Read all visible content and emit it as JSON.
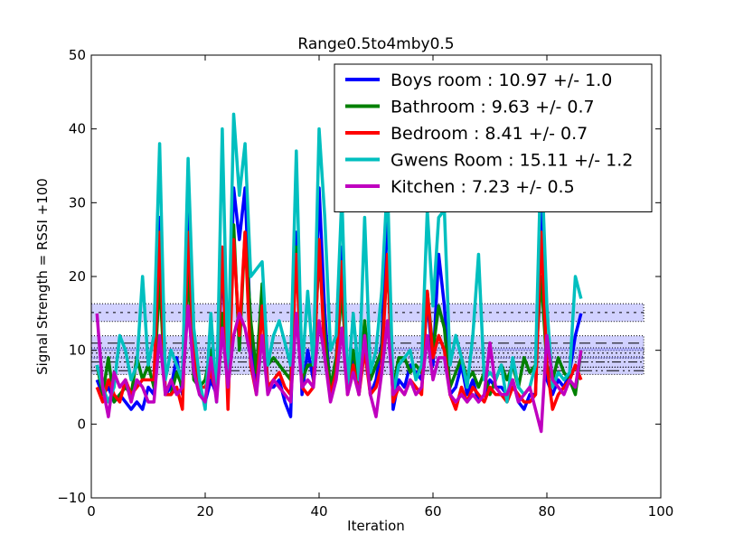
{
  "chart_data": {
    "type": "line",
    "title": "Range0.5to4mby0.5",
    "xlabel": "Iteration",
    "ylabel": "Signal Strength  = RSSI +100",
    "xlim": [
      0,
      100
    ],
    "ylim": [
      -10,
      50
    ],
    "x_ticks": [
      0,
      20,
      40,
      60,
      80,
      100
    ],
    "y_ticks": [
      -10,
      0,
      10,
      20,
      30,
      40,
      50
    ],
    "x_tick_labels": [
      "0",
      "20",
      "40",
      "60",
      "80",
      "100"
    ],
    "y_tick_labels": [
      "−10",
      "0",
      "10",
      "20",
      "30",
      "40",
      "50"
    ],
    "grid": false,
    "legend_position": "upper right",
    "series": [
      {
        "name": "Boys room : 10.97 +/- 1.0",
        "color": "#0000ff",
        "mean": 10.97,
        "spread": 1.0,
        "values": [
          6,
          4,
          5,
          3,
          4,
          3,
          2,
          3,
          2,
          5,
          4,
          28,
          4,
          5,
          9,
          4,
          29,
          11,
          4,
          3,
          6,
          4,
          22,
          5,
          32,
          25,
          32,
          12,
          5,
          18,
          5,
          5,
          6,
          3,
          1,
          26,
          4,
          10,
          6,
          32,
          15,
          4,
          8,
          24,
          5,
          9,
          4,
          12,
          4,
          6,
          11,
          30,
          2,
          6,
          5,
          8,
          7,
          6,
          17,
          8,
          23,
          16,
          4,
          5,
          8,
          4,
          6,
          3,
          4,
          6,
          5,
          5,
          4,
          6,
          3,
          2,
          4,
          4,
          30,
          6,
          4,
          6,
          5,
          7,
          12,
          15
        ]
      },
      {
        "name": "Bathroom : 9.63 +/- 0.7",
        "color": "#008000",
        "mean": 9.63,
        "spread": 0.7,
        "values": [
          8,
          4,
          9,
          3,
          4,
          5,
          4,
          9,
          6,
          8,
          5,
          20,
          4,
          4,
          7,
          5,
          21,
          6,
          5,
          6,
          10,
          6,
          15,
          7,
          27,
          10,
          26,
          14,
          7,
          19,
          8,
          9,
          8,
          7,
          6,
          24,
          6,
          8,
          8,
          23,
          12,
          5,
          9,
          18,
          6,
          10,
          5,
          14,
          6,
          8,
          10,
          22,
          5,
          9,
          9,
          7,
          8,
          7,
          18,
          10,
          16,
          13,
          5,
          7,
          9,
          6,
          7,
          5,
          7,
          4,
          6,
          8,
          6,
          8,
          5,
          9,
          7,
          8,
          20,
          8,
          6,
          9,
          7,
          6,
          4,
          10
        ]
      },
      {
        "name": "Bedroom : 8.41 +/- 0.7",
        "color": "#ff0000",
        "mean": 8.41,
        "spread": 0.7,
        "values": [
          5,
          3,
          6,
          4,
          3,
          6,
          4,
          5,
          6,
          6,
          6,
          26,
          4,
          4,
          5,
          2,
          26,
          10,
          5,
          5,
          7,
          4,
          24,
          2,
          25,
          12,
          26,
          8,
          4,
          16,
          5,
          6,
          7,
          5,
          4,
          23,
          5,
          4,
          5,
          25,
          9,
          4,
          7,
          22,
          4,
          8,
          4,
          10,
          4,
          5,
          8,
          23,
          3,
          5,
          4,
          6,
          5,
          4,
          18,
          9,
          12,
          10,
          4,
          2,
          5,
          3,
          5,
          4,
          3,
          5,
          4,
          4,
          3,
          5,
          4,
          3,
          3,
          4,
          26,
          8,
          2,
          4,
          5,
          6,
          8,
          6
        ]
      },
      {
        "name": "Gwens Room : 15.11 +/- 1.2",
        "color": "#00bfbf",
        "mean": 15.11,
        "spread": 1.2,
        "values": [
          8,
          5,
          3,
          5,
          12,
          10,
          6,
          8,
          20,
          8,
          12,
          38,
          6,
          10,
          8,
          6,
          36,
          13,
          6,
          2,
          15,
          3,
          40,
          7,
          42,
          31,
          38,
          20,
          21,
          22,
          8,
          12,
          14,
          11,
          8,
          37,
          7,
          18,
          8,
          40,
          28,
          10,
          12,
          31,
          5,
          15,
          6,
          28,
          7,
          10,
          18,
          33,
          4,
          8,
          9,
          10,
          6,
          8,
          29,
          16,
          28,
          29,
          8,
          12,
          9,
          5,
          12,
          23,
          6,
          7,
          6,
          8,
          3,
          9,
          5,
          4,
          5,
          8,
          37,
          16,
          5,
          7,
          6,
          7,
          20,
          17
        ]
      },
      {
        "name": "Kitchen : 7.23 +/- 0.5",
        "color": "#bf00bf",
        "mean": 7.23,
        "spread": 0.5,
        "values": [
          15,
          5,
          1,
          7,
          5,
          6,
          3,
          6,
          5,
          3,
          3,
          12,
          4,
          6,
          4,
          5,
          16,
          7,
          4,
          3,
          9,
          3,
          13,
          5,
          12,
          15,
          13,
          9,
          4,
          12,
          4,
          6,
          5,
          4,
          3,
          15,
          5,
          6,
          5,
          14,
          9,
          3,
          6,
          13,
          4,
          7,
          4,
          12,
          4,
          1,
          7,
          14,
          4,
          5,
          4,
          6,
          4,
          5,
          12,
          6,
          9,
          9,
          4,
          3,
          4,
          3,
          4,
          3,
          4,
          11,
          5,
          4,
          4,
          6,
          3,
          4,
          5,
          2,
          -1,
          12,
          6,
          5,
          4,
          6,
          5,
          10
        ]
      }
    ]
  }
}
